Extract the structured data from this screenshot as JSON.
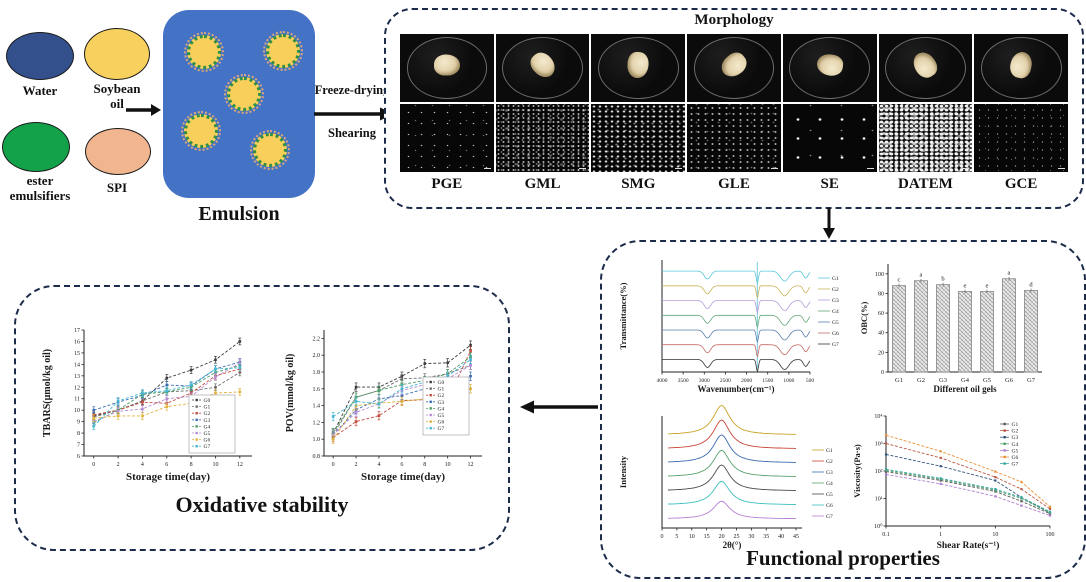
{
  "flow": {
    "ingredients": [
      {
        "label": "Water",
        "color": "#34508c"
      },
      {
        "label": "Soybean oil",
        "color": "#f8d05e"
      },
      {
        "label": "ester emulsifiers",
        "color": "#13a14a"
      },
      {
        "label": "SPI",
        "color": "#f1b68f"
      }
    ],
    "emulsion_label": "Emulsion",
    "emulsion_fill": "#4472c4",
    "droplet_fill": "#f7cf5a",
    "freeze_label": "Freeze-drying",
    "shear_label": "Shearing"
  },
  "morphology": {
    "title": "Morphology",
    "samples": [
      {
        "label": "PGE",
        "speckle": "sparse"
      },
      {
        "label": "GML",
        "speckle": "dense"
      },
      {
        "label": "SMG",
        "speckle": "coarse"
      },
      {
        "label": "GLE",
        "speckle": "medium"
      },
      {
        "label": "SE",
        "speckle": "dots"
      },
      {
        "label": "DATEM",
        "speckle": "noise"
      },
      {
        "label": "GCE",
        "speckle": "fine"
      }
    ]
  },
  "functional": {
    "title": "Functional properties"
  },
  "oxidative": {
    "title": "Oxidative stability"
  },
  "chart_data": {
    "tbars": {
      "type": "line",
      "xlabel": "Storage time(day)",
      "ylabel": "TBARS(μmol/kg oil)",
      "x": [
        0,
        2,
        4,
        6,
        8,
        10,
        12
      ],
      "xticks": [
        0,
        2,
        4,
        6,
        8,
        10,
        12
      ],
      "xlim": [
        -0.8,
        13
      ],
      "ylim": [
        6,
        17
      ],
      "yticks": [
        6,
        7,
        8,
        9,
        10,
        11,
        12,
        13,
        14,
        15,
        16,
        17
      ],
      "error": 0.3,
      "series": [
        {
          "name": "G0",
          "color": "#3a3a3a",
          "values": [
            9.5,
            10.0,
            10.8,
            12.8,
            13.5,
            14.4,
            16.0
          ]
        },
        {
          "name": "G1",
          "color": "#6e6e6e",
          "values": [
            9.4,
            10.0,
            10.8,
            11.6,
            11.7,
            12.0,
            13.3
          ]
        },
        {
          "name": "G2",
          "color": "#c34a3c",
          "values": [
            9.6,
            10.0,
            10.7,
            10.6,
            11.5,
            13.0,
            13.6
          ]
        },
        {
          "name": "G3",
          "color": "#3a6cb2",
          "values": [
            10.0,
            10.7,
            11.3,
            12.2,
            12.1,
            13.6,
            14.2
          ]
        },
        {
          "name": "G4",
          "color": "#4a9d63",
          "values": [
            8.9,
            10.0,
            11.4,
            11.6,
            12.0,
            13.3,
            13.9
          ]
        },
        {
          "name": "G5",
          "color": "#b48ad2",
          "values": [
            9.0,
            9.9,
            10.1,
            11.0,
            11.2,
            12.9,
            14.1
          ]
        },
        {
          "name": "G6",
          "color": "#e3b33f",
          "values": [
            9.3,
            9.5,
            9.5,
            10.3,
            10.6,
            11.5,
            11.6
          ]
        },
        {
          "name": "G7",
          "color": "#45b7d3",
          "values": [
            8.6,
            10.8,
            11.5,
            11.7,
            12.2,
            13.6,
            13.7
          ]
        }
      ]
    },
    "pov": {
      "type": "line",
      "xlabel": "Storage time(day)",
      "ylabel": "POV(mmol/kg oil)",
      "x": [
        0,
        2,
        4,
        6,
        8,
        10,
        12
      ],
      "xticks": [
        0,
        2,
        4,
        6,
        8,
        10,
        12
      ],
      "xlim": [
        -0.8,
        13
      ],
      "ylim": [
        0.8,
        2.3
      ],
      "yticks": [
        0.8,
        1.0,
        1.2,
        1.4,
        1.6,
        1.8,
        2.0,
        2.2
      ],
      "ytick_labels": [
        "0.8",
        "1.0",
        "1.2",
        "1.4",
        "1.6",
        "1.8",
        "2.0",
        "2.2"
      ],
      "error": 0.05,
      "series": [
        {
          "name": "G0",
          "color": "#3a3a3a",
          "values": [
            1.07,
            1.62,
            1.62,
            1.75,
            1.9,
            1.91,
            2.12
          ]
        },
        {
          "name": "G1",
          "color": "#6e6e6e",
          "values": [
            1.05,
            1.5,
            1.58,
            1.72,
            1.73,
            1.78,
            1.88
          ]
        },
        {
          "name": "G2",
          "color": "#c34a3c",
          "values": [
            1.02,
            1.21,
            1.28,
            1.46,
            1.47,
            1.48,
            2.05
          ]
        },
        {
          "name": "G3",
          "color": "#3a6cb2",
          "values": [
            1.05,
            1.35,
            1.48,
            1.52,
            1.6,
            1.65,
            1.75
          ]
        },
        {
          "name": "G4",
          "color": "#4a9d63",
          "values": [
            1.08,
            1.5,
            1.58,
            1.65,
            1.7,
            1.78,
            1.98
          ]
        },
        {
          "name": "G5",
          "color": "#b48ad2",
          "values": [
            1.05,
            1.32,
            1.42,
            1.58,
            1.65,
            1.72,
            1.88
          ]
        },
        {
          "name": "G6",
          "color": "#d9b13b",
          "values": [
            1.0,
            1.4,
            1.43,
            1.45,
            1.48,
            1.52,
            1.6
          ]
        },
        {
          "name": "G7",
          "color": "#45b7d3",
          "values": [
            1.27,
            1.45,
            1.42,
            1.6,
            1.68,
            1.75,
            1.95
          ]
        }
      ]
    },
    "ftir": {
      "type": "line",
      "subtype": "stacked-spectra",
      "xlabel": "Wavenumber(cm⁻¹)",
      "ylabel": "Transmittance(%)",
      "xlim": [
        4000,
        500
      ],
      "xticks": [
        4000,
        3500,
        3000,
        2500,
        2000,
        1500,
        1000,
        500
      ],
      "guide_wavenumber": 1745,
      "bands": [
        {
          "wn": 2925,
          "width": 75,
          "depth": 8
        },
        {
          "wn": 1745,
          "width": 26,
          "depth": 12
        },
        {
          "wn": 1100,
          "width": 100,
          "depth": 10
        },
        {
          "wn": 600,
          "width": 55,
          "depth": 7
        }
      ],
      "series": [
        {
          "name": "G1",
          "color": "#5cc8d8"
        },
        {
          "name": "G2",
          "color": "#c9b35a"
        },
        {
          "name": "G3",
          "color": "#b49cd8"
        },
        {
          "name": "G4",
          "color": "#63a878"
        },
        {
          "name": "G5",
          "color": "#5b7fae"
        },
        {
          "name": "G6",
          "color": "#c46a66"
        },
        {
          "name": "G7",
          "color": "#333333"
        }
      ]
    },
    "obc": {
      "type": "bar",
      "xlabel": "Different oil gels",
      "ylabel": "OBC(%)",
      "categories": [
        "G1",
        "G2",
        "G3",
        "G4",
        "G5",
        "G6",
        "G7"
      ],
      "values": [
        88,
        93,
        89,
        82,
        82,
        95,
        83
      ],
      "letters": [
        "c",
        "a",
        "b",
        "e",
        "e",
        "a",
        "d"
      ],
      "ylim": [
        0,
        110
      ],
      "yticks": [
        0,
        20,
        40,
        60,
        80,
        100
      ]
    },
    "xrd": {
      "type": "line",
      "subtype": "stacked-diffractograms",
      "xlabel": "2θ(°)",
      "ylabel": "Intensity",
      "xlim": [
        0,
        47
      ],
      "xticks": [
        0,
        5,
        10,
        15,
        20,
        25,
        30,
        35,
        40,
        45
      ],
      "peak_2theta": 20,
      "series": [
        {
          "name": "G1",
          "color": "#c8a227",
          "peak_intensity": 1.0
        },
        {
          "name": "G2",
          "color": "#c94436",
          "peak_intensity": 0.98
        },
        {
          "name": "G3",
          "color": "#3a6bb0",
          "peak_intensity": 0.95
        },
        {
          "name": "G4",
          "color": "#55a06a",
          "peak_intensity": 0.9
        },
        {
          "name": "G5",
          "color": "#4a4a4a",
          "peak_intensity": 0.88
        },
        {
          "name": "G6",
          "color": "#3fc0c0",
          "peak_intensity": 0.8
        },
        {
          "name": "G7",
          "color": "#b77fd4",
          "peak_intensity": 0.6
        }
      ]
    },
    "viscosity": {
      "type": "line",
      "subtype": "log-log",
      "xlabel": "Shear Rate(s⁻¹)",
      "ylabel": "Viscosity(Pa·s)",
      "shear": [
        0.1,
        1,
        10,
        30,
        100
      ],
      "xticks": [
        0.1,
        1,
        10,
        100
      ],
      "xtick_labels": [
        "0.1",
        "1",
        "10",
        "100"
      ],
      "ytick_labels": [
        "10⁰",
        "10¹",
        "10²",
        "10³",
        "10⁴"
      ],
      "series": [
        {
          "name": "G1",
          "color": "#5a5a5a",
          "values": [
            95,
            45,
            18,
            8,
            2.8
          ]
        },
        {
          "name": "G2",
          "color": "#bb5a45",
          "values": [
            1000,
            300,
            60,
            22,
            4.2
          ]
        },
        {
          "name": "G3",
          "color": "#33567e",
          "values": [
            400,
            150,
            45,
            11,
            3.0
          ]
        },
        {
          "name": "G4",
          "color": "#55a06a",
          "values": [
            105,
            50,
            20,
            10,
            3.0
          ]
        },
        {
          "name": "G5",
          "color": "#b07fd0",
          "values": [
            75,
            34,
            12,
            5.5,
            2.4
          ]
        },
        {
          "name": "G6",
          "color": "#e8923a",
          "values": [
            2000,
            520,
            95,
            40,
            5.0
          ]
        },
        {
          "name": "G7",
          "color": "#3aa8a0",
          "values": [
            115,
            54,
            22,
            11,
            3.3
          ]
        }
      ]
    }
  }
}
